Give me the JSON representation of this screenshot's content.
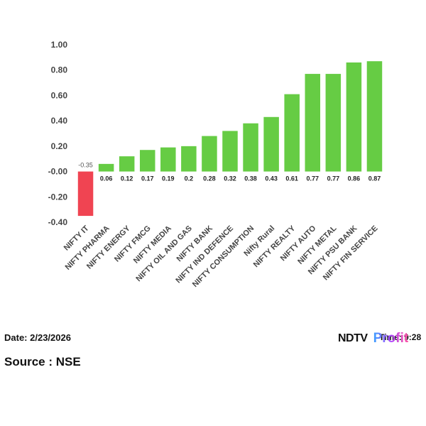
{
  "chart_data": {
    "type": "bar",
    "categories": [
      "NIFTY IT",
      "NIFTY PHARMA",
      "NIFTY ENERGY",
      "NIFTY FMCG",
      "NIFTY MEDIA",
      "NIFTY OIL AND GAS",
      "NIFTY BANK",
      "NIFTY IND DEFENCE",
      "NIFTY CONSUMPTION",
      "Nifty Rural",
      "NIFTY REALTY",
      "NIFTY AUTO",
      "NIFTY METAL",
      "NIFTY PSU BANK",
      "NIFTY FIN SERVICE"
    ],
    "values": [
      -0.35,
      0.06,
      0.12,
      0.17,
      0.19,
      0.2,
      0.28,
      0.32,
      0.38,
      0.43,
      0.61,
      0.77,
      0.77,
      0.86,
      0.87
    ],
    "value_labels": [
      "-0.35",
      "0.06",
      "0.12",
      "0.17",
      "0.19",
      "0.2",
      "0.28",
      "0.32",
      "0.38",
      "0.43",
      "0.61",
      "0.77",
      "0.77",
      "0.86",
      "0.87"
    ],
    "yticks": [
      "1.00",
      "0.80",
      "0.60",
      "0.40",
      "0.20",
      "-0.00",
      "-0.20",
      "-0.40"
    ],
    "ylim": [
      -0.4,
      1.0
    ],
    "title": "",
    "xlabel": "",
    "ylabel": "",
    "grid": false,
    "colors": {
      "positive": "#66cc44",
      "negative": "#f04452"
    }
  },
  "footer": {
    "date": "Date: 2/23/2026",
    "source": "Source : NSE",
    "time": "Time: 9:28"
  },
  "logo": {
    "brand": "NDTV",
    "product": "Profit"
  }
}
